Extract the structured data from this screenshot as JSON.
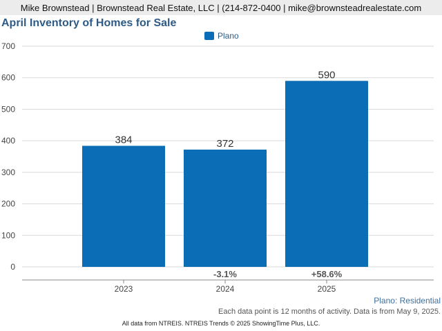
{
  "header": {
    "contact": "Mike Brownstead | Brownstead Real Estate, LLC | (214-872-0400 | mike@brownsteadrealestate.com"
  },
  "chart_data": {
    "type": "bar",
    "title": "April Inventory of Homes for Sale",
    "xlabel": "",
    "ylabel": "",
    "categories": [
      "2023",
      "2024",
      "2025"
    ],
    "series": [
      {
        "name": "Plano",
        "values": [
          384,
          372,
          590
        ],
        "color": "#0a6db5"
      }
    ],
    "data_labels": [
      "384",
      "372",
      "590"
    ],
    "change_labels": [
      "",
      "-3.1%",
      "+58.6%"
    ],
    "ylim": [
      0,
      700
    ],
    "yticks": [
      0,
      100,
      200,
      300,
      400,
      500,
      600,
      700
    ],
    "grid": true,
    "legend": "top-center"
  },
  "footer": {
    "series_label": "Plano: Residential",
    "note": "Each data point is 12 months of activity. Data is from May 9, 2025.",
    "credit": "All data from NTREIS. NTREIS Trends © 2025 ShowingTime Plus, LLC."
  },
  "colors": {
    "title": "#2d5b86",
    "bar": "#0a6db5",
    "grid": "#d9d9d9",
    "axis_text": "#444444",
    "series_label": "#3f6f9c"
  }
}
